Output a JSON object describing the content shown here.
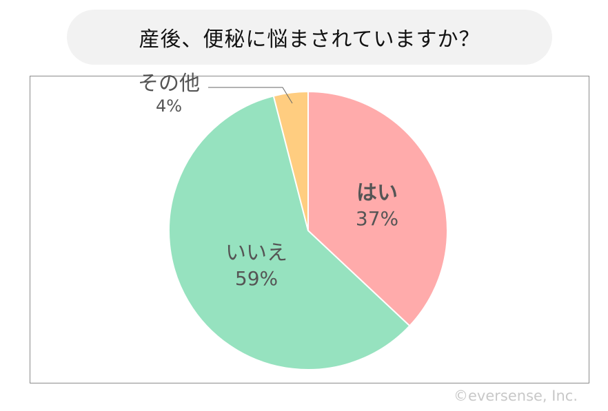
{
  "chart_data": {
    "type": "pie",
    "title": "産後、便秘に悩まされていますか？",
    "slices": [
      {
        "label": "はい",
        "value": 37,
        "value_label": "37%",
        "color": "#FFABAB"
      },
      {
        "label": "いいえ",
        "value": 59,
        "value_label": "59%",
        "color": "#96E2BF"
      },
      {
        "label": "その他",
        "value": 4,
        "value_label": "4%",
        "color": "#FFCD80"
      }
    ],
    "start": "top",
    "direction": "clockwise"
  },
  "copyright": "©eversense, Inc."
}
